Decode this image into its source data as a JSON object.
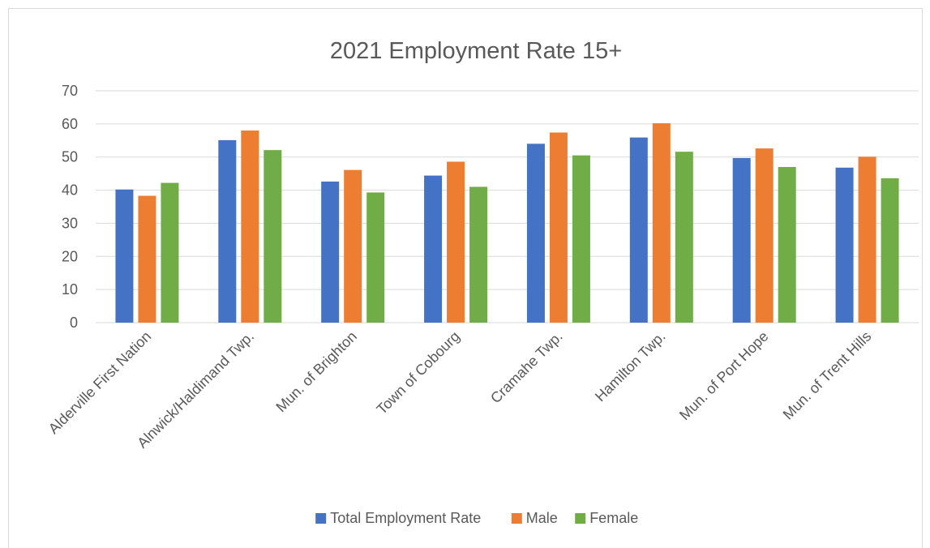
{
  "chart_data": {
    "type": "bar",
    "title": "2021 Employment Rate 15+",
    "xlabel": "",
    "ylabel": "",
    "ylim": [
      0,
      70
    ],
    "yticks": [
      0,
      10,
      20,
      30,
      40,
      50,
      60,
      70
    ],
    "grid": true,
    "legend_position": "bottom",
    "categories": [
      "Alderville First Nation",
      "Alnwick/Haldimand Twp.",
      "Mun. of Brighton",
      "Town of Cobourg",
      "Cramahe Twp.",
      "Hamilton Twp.",
      "Mun. of Port Hope",
      "Mun. of Trent Hills"
    ],
    "series": [
      {
        "name": "Total Employment Rate",
        "color": "#4472c4",
        "values": [
          40.2,
          55.1,
          42.6,
          44.4,
          54.0,
          55.9,
          49.7,
          46.8
        ]
      },
      {
        "name": "Male",
        "color": "#ed7d31",
        "values": [
          38.3,
          58.0,
          46.1,
          48.6,
          57.4,
          60.2,
          52.6,
          50.1
        ]
      },
      {
        "name": "Female",
        "color": "#70ad47",
        "values": [
          42.2,
          52.1,
          39.3,
          41.0,
          50.5,
          51.6,
          47.0,
          43.6
        ]
      }
    ]
  }
}
